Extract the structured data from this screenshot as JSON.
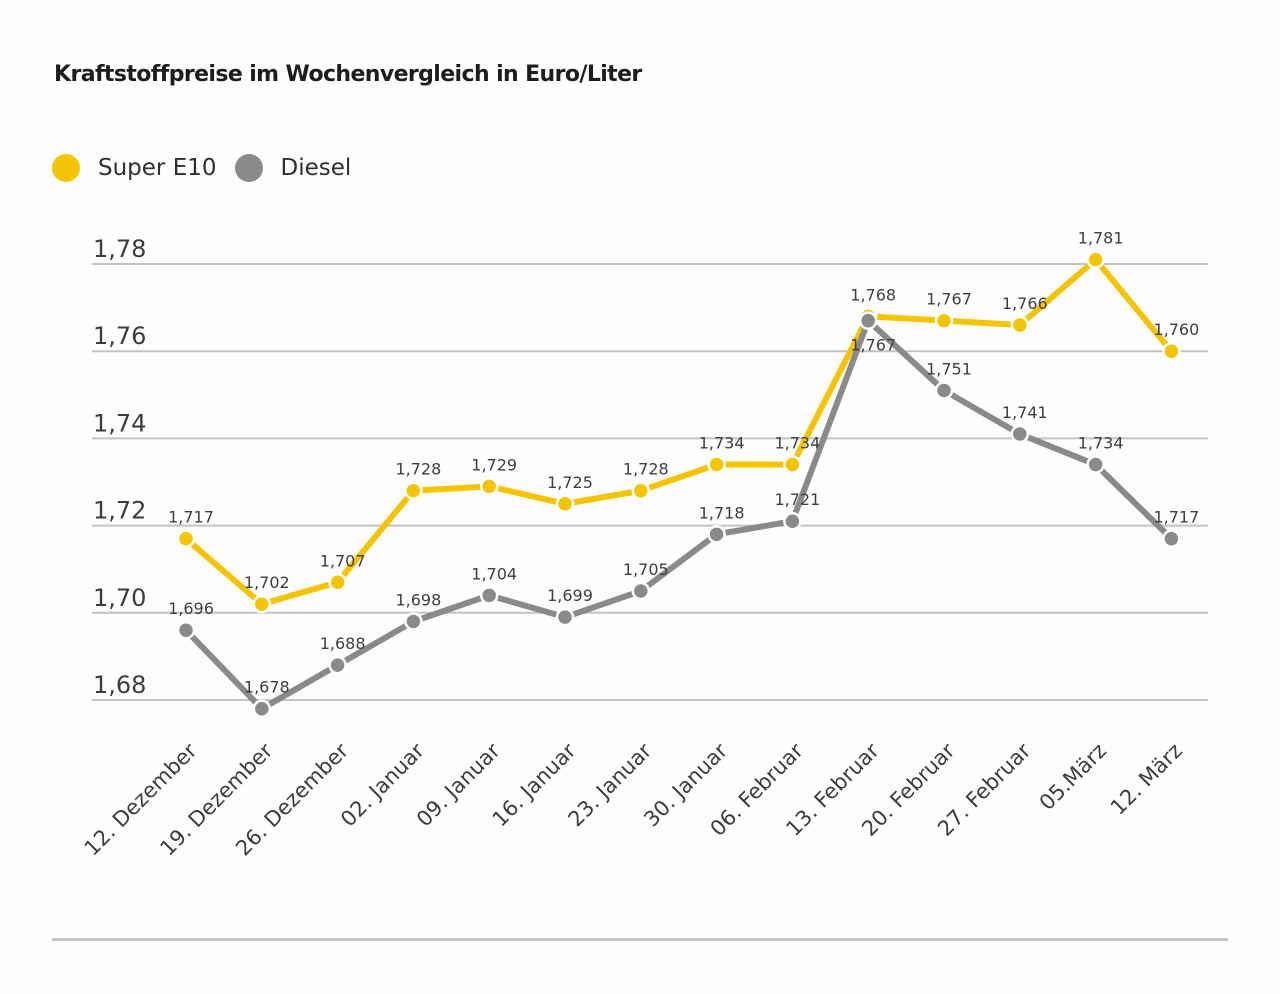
{
  "chart_data": {
    "type": "line",
    "title": "Kraftstoffpreise im Wochenvergleich in Euro/Liter",
    "xlabel": "",
    "ylabel": "",
    "ylim": [
      1.68,
      1.78
    ],
    "yticks": [
      1.68,
      1.7,
      1.72,
      1.74,
      1.76,
      1.78
    ],
    "ytick_labels": [
      "1,68",
      "1,70",
      "1,72",
      "1,74",
      "1,76",
      "1,78"
    ],
    "grid": true,
    "legend_position": "top-left",
    "categories": [
      "12. Dezember",
      "19. Dezember",
      "26. Dezember",
      "02. Januar",
      "09. Januar",
      "16. Januar",
      "23. Januar",
      "30. Januar",
      "06. Februar",
      "13. Februar",
      "20. Februar",
      "27. Februar",
      "05.März",
      "12. März"
    ],
    "series": [
      {
        "name": "Super E10",
        "color": "#f5c400",
        "values": [
          1.717,
          1.702,
          1.707,
          1.728,
          1.729,
          1.725,
          1.728,
          1.734,
          1.734,
          1.768,
          1.767,
          1.766,
          1.781,
          1.76
        ],
        "labels": [
          "1,717",
          "1,702",
          "1,707",
          "1,728",
          "1,729",
          "1,725",
          "1,728",
          "1,734",
          "1,734",
          "1,768",
          "1,767",
          "1,766",
          "1,781",
          "1,760"
        ]
      },
      {
        "name": "Diesel",
        "color": "#8a8a8a",
        "values": [
          1.696,
          1.678,
          1.688,
          1.698,
          1.704,
          1.699,
          1.705,
          1.718,
          1.721,
          1.767,
          1.751,
          1.741,
          1.734,
          1.717
        ],
        "labels": [
          "1,696",
          "1,678",
          "1,688",
          "1,698",
          "1,704",
          "1,699",
          "1,705",
          "1,718",
          "1,721",
          "1,767",
          "1,751",
          "1,741",
          "1,734",
          "1,717"
        ]
      }
    ]
  }
}
